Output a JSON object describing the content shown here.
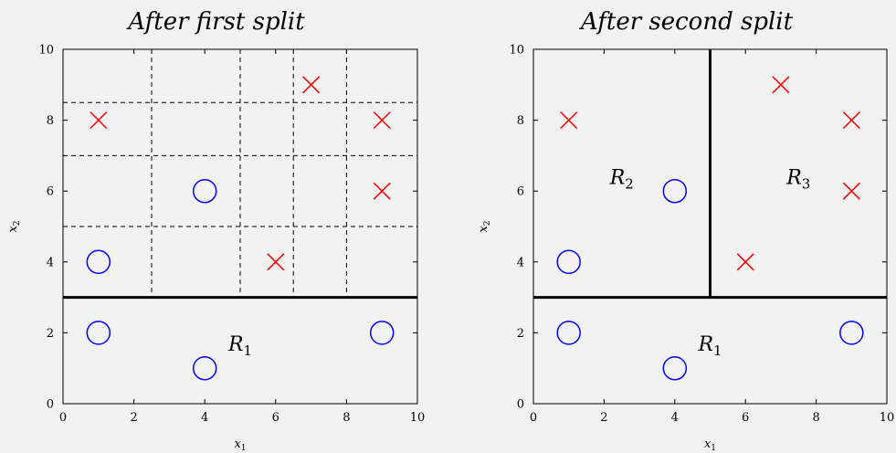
{
  "chart_data": [
    {
      "type": "scatter",
      "title": "After first split",
      "xlabel": "x1",
      "ylabel": "x2",
      "xlim": [
        0,
        10
      ],
      "ylim": [
        0,
        10
      ],
      "xticks": [
        0,
        2,
        4,
        6,
        8,
        10
      ],
      "yticks": [
        0,
        2,
        4,
        6,
        8,
        10
      ],
      "series": [
        {
          "marker": "circle",
          "color": "#0000ff",
          "points": [
            [
              1,
              2
            ],
            [
              4,
              1
            ],
            [
              9,
              2
            ],
            [
              1,
              4
            ],
            [
              4,
              6
            ]
          ]
        },
        {
          "marker": "cross",
          "color": "#ff0000",
          "points": [
            [
              1,
              8
            ],
            [
              7,
              9
            ],
            [
              9,
              8
            ],
            [
              9,
              6
            ],
            [
              6,
              4
            ]
          ]
        }
      ],
      "splits": [
        {
          "orientation": "horizontal",
          "value": 3,
          "from": 0,
          "to": 10
        }
      ],
      "candidate_splits": {
        "vertical": [
          2.5,
          5,
          6.5,
          8
        ],
        "horizontal": [
          5,
          7,
          8.5
        ],
        "range_low": 3,
        "range_high": 10
      },
      "regions": [
        {
          "label": "R",
          "sub": "1",
          "x": 5,
          "y": 1.5
        }
      ]
    },
    {
      "type": "scatter",
      "title": "After second split",
      "xlabel": "x1",
      "ylabel": "x2",
      "xlim": [
        0,
        10
      ],
      "ylim": [
        0,
        10
      ],
      "xticks": [
        0,
        2,
        4,
        6,
        8,
        10
      ],
      "yticks": [
        0,
        2,
        4,
        6,
        8,
        10
      ],
      "series": [
        {
          "marker": "circle",
          "color": "#0000ff",
          "points": [
            [
              1,
              2
            ],
            [
              4,
              1
            ],
            [
              9,
              2
            ],
            [
              1,
              4
            ],
            [
              4,
              6
            ]
          ]
        },
        {
          "marker": "cross",
          "color": "#ff0000",
          "points": [
            [
              1,
              8
            ],
            [
              7,
              9
            ],
            [
              9,
              8
            ],
            [
              9,
              6
            ],
            [
              6,
              4
            ]
          ]
        }
      ],
      "splits": [
        {
          "orientation": "horizontal",
          "value": 3,
          "from": 0,
          "to": 10
        },
        {
          "orientation": "vertical",
          "value": 5,
          "from": 3,
          "to": 10
        }
      ],
      "candidate_splits": null,
      "regions": [
        {
          "label": "R",
          "sub": "1",
          "x": 5,
          "y": 1.5
        },
        {
          "label": "R",
          "sub": "2",
          "x": 2.5,
          "y": 6.2
        },
        {
          "label": "R",
          "sub": "3",
          "x": 7.5,
          "y": 6.2
        }
      ]
    }
  ]
}
